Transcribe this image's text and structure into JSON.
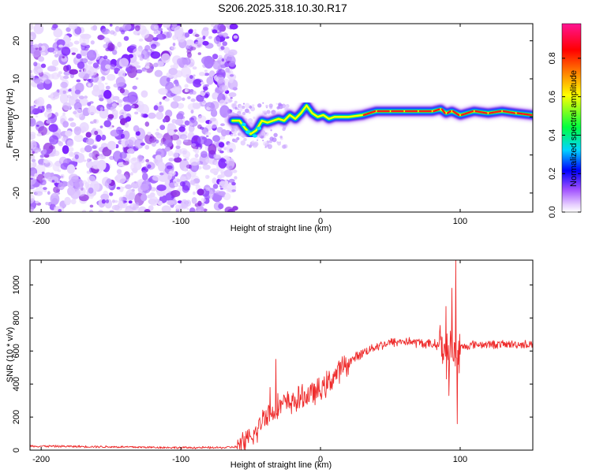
{
  "title": "S206.2025.318.10.30.R17",
  "chart_data": [
    {
      "type": "heatmap",
      "description_role": "spectrogram",
      "xlabel": "Height of straight line (km)",
      "ylabel": "Frequency (Hz)",
      "xlim": [
        -208,
        152
      ],
      "ylim": [
        -25,
        24.5
      ],
      "xticks": [
        -200,
        -100,
        0,
        100
      ],
      "yticks": [
        20,
        10,
        0,
        -10,
        -20
      ],
      "noise_region_x": [
        -208,
        -63
      ],
      "transition_start_x": -63,
      "ridge": {
        "x": [
          -63,
          -58,
          -54,
          -50,
          -46,
          -42,
          -38,
          -34,
          -30,
          -26,
          -22,
          -18,
          -14,
          -10,
          -6,
          -2,
          2,
          6,
          10,
          14,
          20,
          30,
          40,
          50,
          60,
          70,
          80,
          86,
          90,
          94,
          100,
          110,
          120,
          130,
          140,
          152
        ],
        "y": [
          -1,
          -1,
          -3,
          -4.5,
          -3.5,
          -1,
          -1.5,
          -1,
          -0.5,
          -1,
          0.5,
          -0.5,
          1,
          3,
          1,
          0,
          0.5,
          -0.5,
          0,
          0,
          0,
          0.5,
          1.5,
          1.5,
          1.5,
          1.5,
          1.5,
          2,
          1,
          1.5,
          0.5,
          1.5,
          1,
          1.5,
          1,
          0.5
        ]
      },
      "colorbar": {
        "label": "Normalized spectral amplitude",
        "ticks": [
          0.0,
          0.2,
          0.4,
          0.6,
          0.8
        ],
        "range": [
          0,
          0.98
        ],
        "colors": [
          "#ffffff",
          "#e6ccff",
          "#8a2be2",
          "#0000ff",
          "#00d5ff",
          "#00ff40",
          "#ffff00",
          "#ff8000",
          "#ff0000",
          "#ff1493"
        ]
      }
    },
    {
      "type": "line",
      "xlabel": "Height of straight line (km)",
      "ylabel": "SNR (10 * v/v)",
      "xlim": [
        -208,
        152
      ],
      "ylim": [
        0,
        1150
      ],
      "xticks": [
        -200,
        -100,
        0,
        100
      ],
      "yticks": [
        0,
        200,
        400,
        600,
        800,
        1000
      ],
      "color": "#ee2b2b",
      "trend": {
        "x": [
          -208,
          -150,
          -100,
          -70,
          -60,
          -50,
          -45,
          -40,
          -35,
          -30,
          -20,
          -10,
          0,
          10,
          20,
          30,
          40,
          50,
          60,
          70,
          80,
          86,
          90,
          94,
          96,
          98,
          100,
          110,
          120,
          130,
          140,
          152
        ],
        "y": [
          25,
          20,
          15,
          15,
          20,
          60,
          120,
          220,
          220,
          270,
          290,
          330,
          360,
          450,
          530,
          590,
          630,
          650,
          660,
          650,
          640,
          640,
          580,
          620,
          620,
          560,
          620,
          640,
          640,
          640,
          640,
          640
        ]
      },
      "spikes": [
        {
          "x": -32,
          "y": 550
        },
        {
          "x": -36,
          "y": 380
        },
        {
          "x": 90,
          "y": 870
        },
        {
          "x": 94,
          "y": 980
        },
        {
          "x": 97,
          "y": 1150
        },
        {
          "x": 98,
          "y": 160
        },
        {
          "x": 92,
          "y": 330
        }
      ]
    }
  ]
}
